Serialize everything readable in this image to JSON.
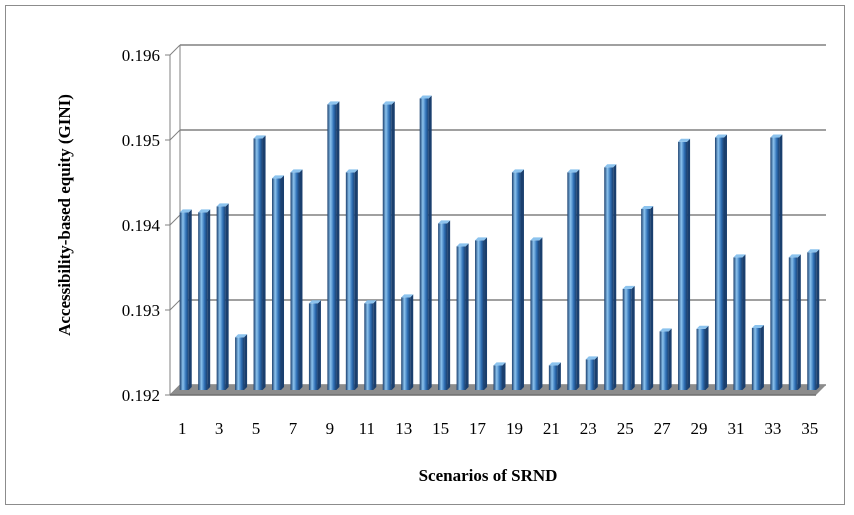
{
  "chart_data": {
    "type": "bar",
    "xlabel": "Scenarios of SRND",
    "ylabel": "Accessibility-based equity (GINI)",
    "ylim": [
      0.192,
      0.196
    ],
    "yticks": [
      "0.192",
      "0.193",
      "0.194",
      "0.195",
      "0.196"
    ],
    "grid": true,
    "legend": "none",
    "colors": {
      "bar": "#2e6fb5",
      "bar_highlight": "#8cc3ee",
      "bar_shadow": "#1a3f6e",
      "floor": "#8c8c8c",
      "grid": "#808080"
    },
    "categories": [
      "1",
      "2",
      "3",
      "4",
      "5",
      "6",
      "7",
      "8",
      "9",
      "10",
      "11",
      "12",
      "13",
      "14",
      "15",
      "16",
      "17",
      "18",
      "19",
      "20",
      "21",
      "22",
      "23",
      "24",
      "25",
      "26",
      "27",
      "28",
      "29",
      "30",
      "31",
      "32",
      "33",
      "34",
      "35"
    ],
    "x_tick_labels": [
      "1",
      "3",
      "5",
      "7",
      "9",
      "11",
      "13",
      "15",
      "17",
      "19",
      "21",
      "23",
      "25",
      "27",
      "29",
      "31",
      "33",
      "35"
    ],
    "values": [
      0.19409,
      0.19409,
      0.19416,
      0.19262,
      0.19496,
      0.19449,
      0.19456,
      0.19302,
      0.19536,
      0.19456,
      0.19302,
      0.19536,
      0.19309,
      0.19543,
      0.19396,
      0.19369,
      0.19376,
      0.19229,
      0.19456,
      0.19376,
      0.19229,
      0.19456,
      0.19236,
      0.19462,
      0.19319,
      0.19413,
      0.19269,
      0.19492,
      0.19272,
      0.19497,
      0.19356,
      0.19273,
      0.19497,
      0.19356,
      0.19362
    ]
  }
}
